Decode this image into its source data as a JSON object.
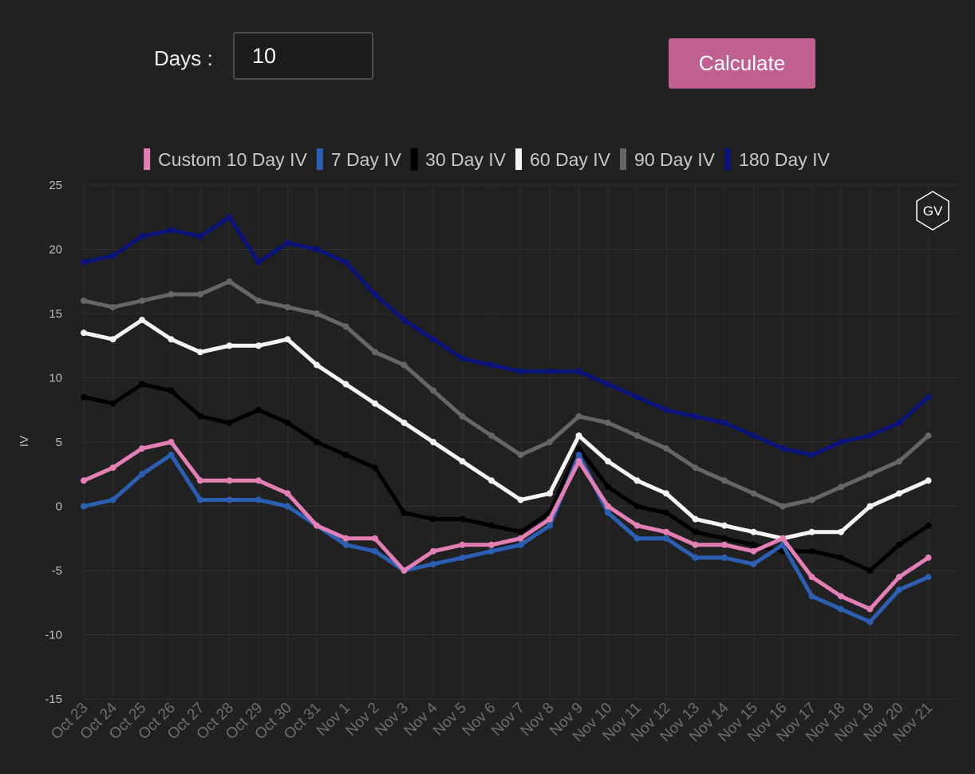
{
  "controls": {
    "days_label": "Days :",
    "days_value": "10",
    "calculate_label": "Calculate"
  },
  "logo": {
    "text": "GV"
  },
  "colors": {
    "background": "#212121",
    "button": "#c06090",
    "custom10": "#e37fb5",
    "d7": "#2b5fb3",
    "d30": "#000000",
    "d60": "#f5f5f5",
    "d90": "#666666",
    "d180": "#0a137a"
  },
  "chart_data": {
    "type": "line",
    "title": "",
    "xlabel": "",
    "ylabel": "IV",
    "ylim": [
      -15,
      25
    ],
    "yticks": [
      25,
      20,
      15,
      10,
      5,
      0,
      -5,
      -10,
      -15
    ],
    "grid": true,
    "legend_position": "top",
    "x_categories": [
      "Oct 23",
      "Oct 24",
      "Oct 25",
      "Oct 26",
      "Oct 27",
      "Oct 28",
      "Oct 29",
      "Oct 30",
      "Oct 31",
      "Nov 1",
      "Nov 2",
      "Nov 3",
      "Nov 4",
      "Nov 5",
      "Nov 6",
      "Nov 7",
      "Nov 8",
      "Nov 9",
      "Nov 10",
      "Nov 11",
      "Nov 12",
      "Nov 13",
      "Nov 14",
      "Nov 15",
      "Nov 16",
      "Nov 17",
      "Nov 18",
      "Nov 19",
      "Nov 20",
      "Nov 21"
    ],
    "series": [
      {
        "name": "180 Day IV",
        "color": "#0a137a",
        "values": [
          19,
          19.5,
          21,
          21.5,
          21,
          22.5,
          19,
          20.5,
          20,
          19,
          16.5,
          14.5,
          13,
          11.5,
          11,
          10.5,
          10.5,
          10.5,
          9.5,
          8.5,
          7.5,
          7,
          6.5,
          5.5,
          4.5,
          4,
          5,
          5.5,
          6.5,
          8.5
        ]
      },
      {
        "name": "90 Day IV",
        "color": "#666666",
        "values": [
          16,
          15.5,
          16,
          16.5,
          16.5,
          17.5,
          16,
          15.5,
          15,
          14,
          12,
          11,
          9,
          7,
          5.5,
          4,
          5,
          7,
          6.5,
          5.5,
          4.5,
          3,
          2,
          1,
          0,
          0.5,
          1.5,
          2.5,
          3.5,
          5.5
        ]
      },
      {
        "name": "60 Day IV",
        "color": "#f5f5f5",
        "values": [
          13.5,
          13,
          14.5,
          13,
          12,
          12.5,
          12.5,
          13,
          11,
          9.5,
          8,
          6.5,
          5,
          3.5,
          2,
          0.5,
          1,
          5.5,
          3.5,
          2,
          1,
          -1,
          -1.5,
          -2,
          -2.5,
          -2,
          -2,
          0,
          1,
          2
        ]
      },
      {
        "name": "30 Day IV",
        "color": "#000000",
        "values": [
          8.5,
          8,
          9.5,
          9,
          7,
          6.5,
          7.5,
          6.5,
          5,
          4,
          3,
          -0.5,
          -1,
          -1,
          -1.5,
          -2,
          -0.5,
          4.5,
          1.5,
          0,
          -0.5,
          -2,
          -2.5,
          -3,
          -3.5,
          -3.5,
          -4,
          -5,
          -3,
          -1.5
        ]
      },
      {
        "name": "7 Day IV",
        "color": "#2b5fb3",
        "values": [
          0,
          0.5,
          2.5,
          4,
          0.5,
          0.5,
          0.5,
          0,
          -1.5,
          -3,
          -3.5,
          -5,
          -4.5,
          -4,
          -3.5,
          -3,
          -1.5,
          4,
          -0.5,
          -2.5,
          -2.5,
          -4,
          -4,
          -4.5,
          -3,
          -7,
          -8,
          -9,
          -6.5,
          -5.5
        ]
      },
      {
        "name": "Custom 10 Day IV",
        "color": "#e37fb5",
        "values": [
          2,
          3,
          4.5,
          5,
          2,
          2,
          2,
          1,
          -1.5,
          -2.5,
          -2.5,
          -5,
          -3.5,
          -3,
          -3,
          -2.5,
          -1,
          3.5,
          0,
          -1.5,
          -2,
          -3,
          -3,
          -3.5,
          -2.5,
          -5.5,
          -7,
          -8,
          -5.5,
          -4
        ]
      }
    ],
    "legend_order": [
      "Custom 10 Day IV",
      "7 Day IV",
      "30 Day IV",
      "60 Day IV",
      "90 Day IV",
      "180 Day IV"
    ]
  }
}
